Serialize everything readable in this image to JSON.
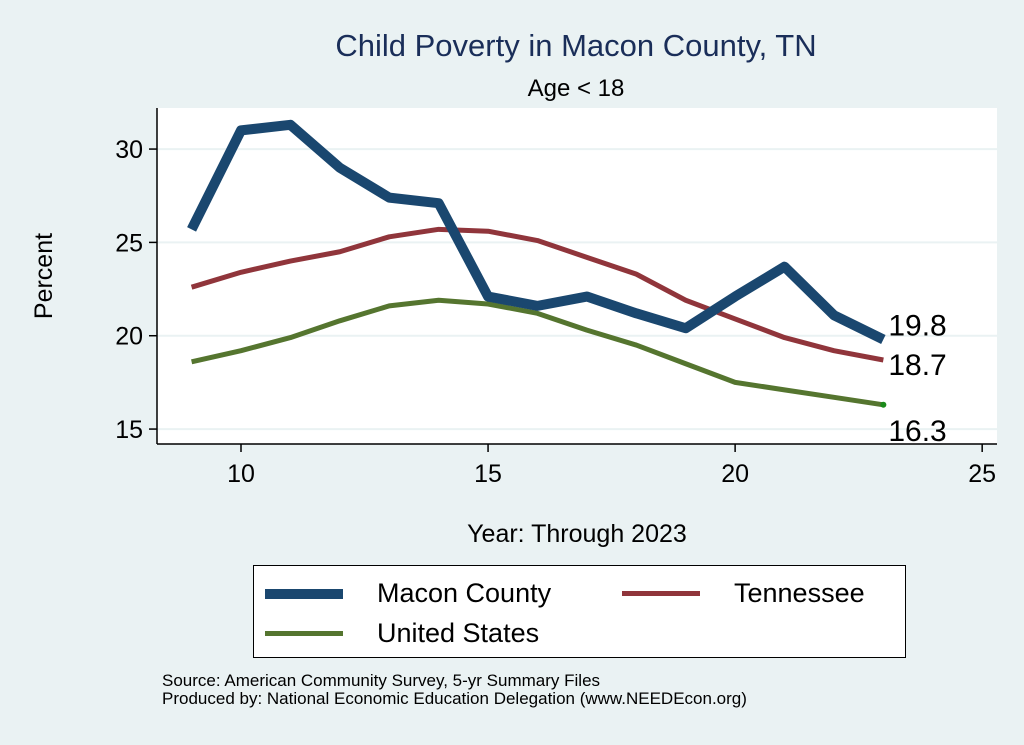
{
  "chart_data": {
    "type": "line",
    "title": "Child Poverty in Macon County, TN",
    "subtitle": "Age < 18",
    "xlabel": "Year: Through 2023",
    "ylabel": "Percent",
    "xlim": [
      8.3,
      25.3
    ],
    "ylim": [
      14.2,
      32.2
    ],
    "xticks": [
      10,
      15,
      20,
      25
    ],
    "yticks": [
      15,
      20,
      25,
      30
    ],
    "grid": true,
    "legend_position": "bottom",
    "x": [
      9,
      10,
      11,
      12,
      13,
      14,
      15,
      16,
      17,
      18,
      19,
      20,
      21,
      22,
      23
    ],
    "series": [
      {
        "name": "Macon County",
        "color": "#1a476f",
        "values": [
          25.7,
          31.0,
          31.3,
          29.0,
          27.4,
          27.1,
          22.1,
          21.6,
          22.1,
          21.2,
          20.4,
          22.1,
          23.7,
          21.1,
          19.8
        ],
        "end_label": "19.8"
      },
      {
        "name": "Tennessee",
        "color": "#90353b",
        "values": [
          22.6,
          23.4,
          24.0,
          24.5,
          25.3,
          25.7,
          25.6,
          25.1,
          24.2,
          23.3,
          21.9,
          20.9,
          19.9,
          19.2,
          18.7
        ],
        "end_label": "18.7"
      },
      {
        "name": "United States",
        "color": "#55752f",
        "values": [
          18.6,
          19.2,
          19.9,
          20.8,
          21.6,
          21.9,
          21.7,
          21.2,
          20.3,
          19.5,
          18.5,
          17.5,
          17.1,
          16.7,
          16.3
        ],
        "end_label": "16.3"
      }
    ]
  },
  "legend": {
    "items": [
      "Macon County",
      "Tennessee",
      "United States"
    ]
  },
  "notes": {
    "source": "Source: American Community Survey, 5-yr Summary Files",
    "produced": "Produced by: National Economic Education Delegation (www.NEEDEcon.org)"
  }
}
